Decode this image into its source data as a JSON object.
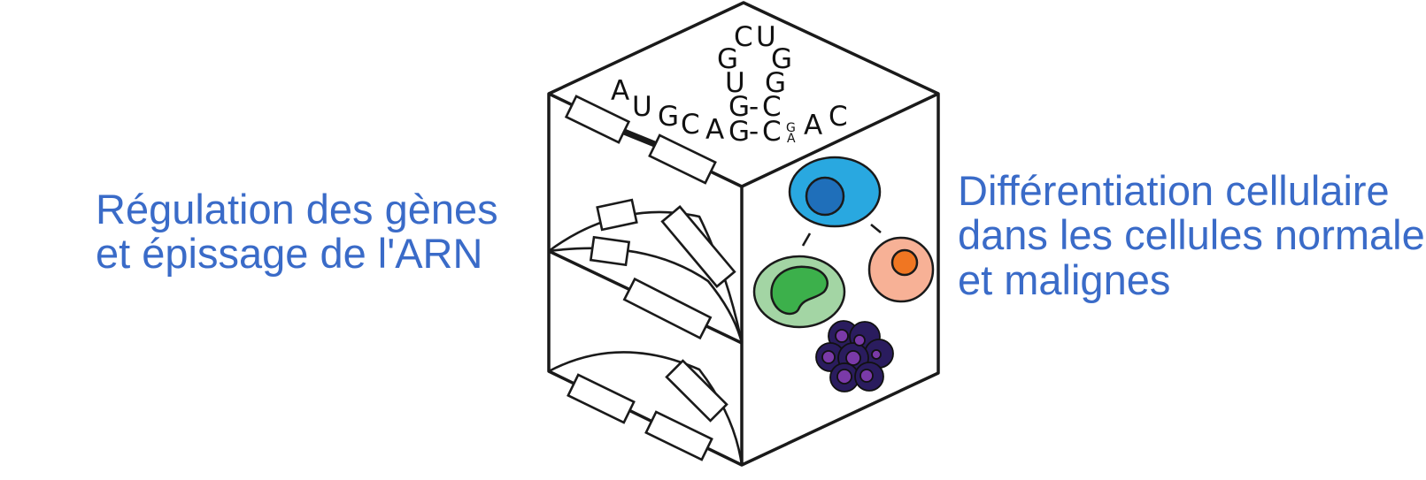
{
  "left_caption": [
    "Régulation des gènes",
    "et épissage de l'ARN"
  ],
  "right_caption": [
    "Différentiation cellulaire",
    "dans les cellules normales",
    "et malignes"
  ],
  "rna_letters": {
    "linear": [
      "A",
      "U",
      "G",
      "C",
      "A"
    ],
    "stem_bottom": [
      "G",
      "-",
      "C"
    ],
    "stem_top": [
      "G",
      "-",
      "C"
    ],
    "left_loop": [
      "U",
      "G"
    ],
    "right_loop": [
      "G",
      "G"
    ],
    "loop_top": [
      "C",
      "U"
    ],
    "bulge": [
      "G",
      "A"
    ],
    "tail": [
      "A",
      "C"
    ]
  },
  "colors": {
    "caption": "#3a6bc8",
    "cell_blue": "#29a8e0",
    "nucleus_blue": "#1f6fba",
    "cell_green": "#a3d5a4",
    "nucleus_green": "#3cb04b",
    "cell_peach": "#f7b196",
    "nucleus_orange": "#f07622",
    "cluster_dark": "#2a1c5e",
    "cluster_purple": "#7a3aa8"
  },
  "icons": [
    "splicing-exon-icon",
    "blue-stem-cell-icon",
    "green-cell-icon",
    "orange-cell-icon",
    "purple-cell-cluster-icon"
  ]
}
